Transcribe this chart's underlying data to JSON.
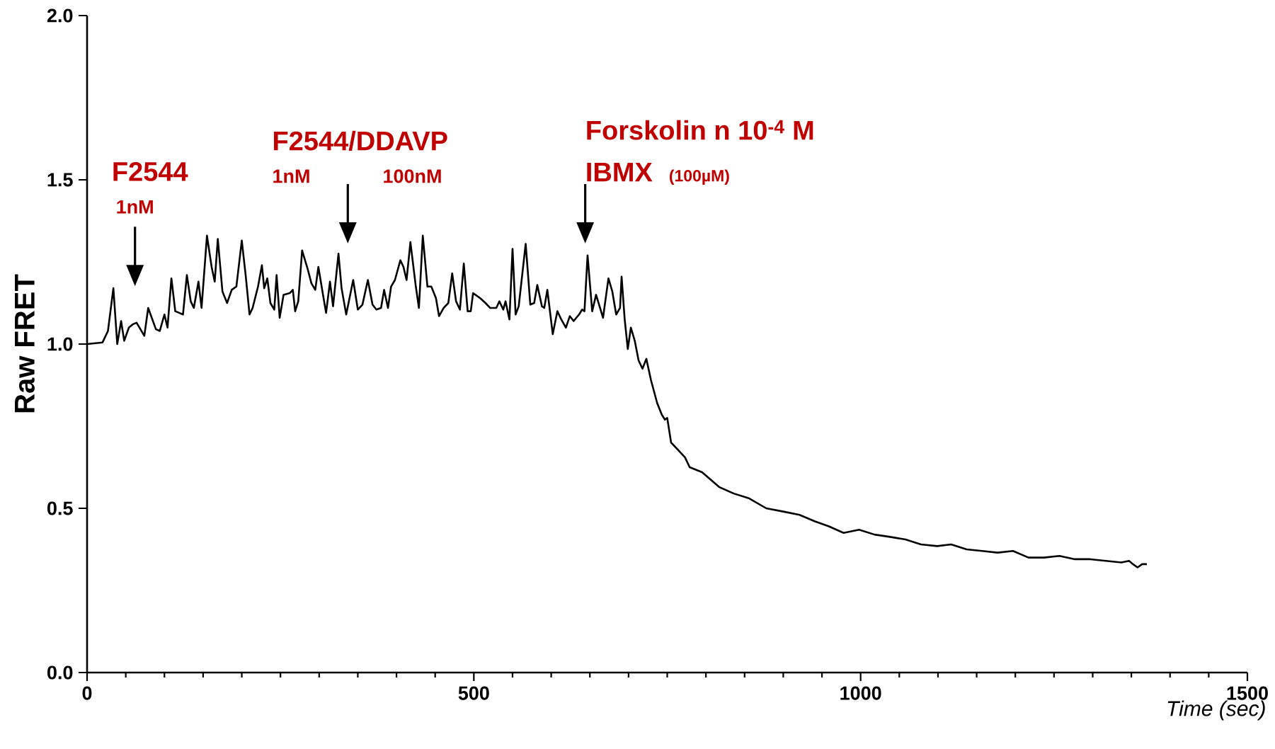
{
  "chart_data": {
    "type": "line",
    "xlabel": "Time (sec)",
    "ylabel": "Raw FRET",
    "xlim": [
      0,
      1500
    ],
    "ylim": [
      0,
      2.0
    ],
    "xticks": [
      0,
      {
        "value": 50,
        "label": null
      },
      {
        "value": 100,
        "label": null
      },
      {
        "value": 150,
        "label": null
      },
      {
        "value": 200,
        "label": null
      },
      {
        "value": 250,
        "label": null
      },
      {
        "value": 300,
        "label": null
      },
      {
        "value": 350,
        "label": null
      },
      {
        "value": 400,
        "label": null
      },
      {
        "value": 450,
        "label": null
      },
      500,
      {
        "value": 550,
        "label": null
      },
      {
        "value": 600,
        "label": null
      },
      {
        "value": 650,
        "label": null
      },
      {
        "value": 700,
        "label": null
      },
      {
        "value": 750,
        "label": null
      },
      {
        "value": 800,
        "label": null
      },
      {
        "value": 850,
        "label": null
      },
      {
        "value": 900,
        "label": null
      },
      {
        "value": 950,
        "label": null
      },
      1000,
      {
        "value": 1050,
        "label": null
      },
      {
        "value": 1100,
        "label": null
      },
      {
        "value": 1150,
        "label": null
      },
      {
        "value": 1200,
        "label": null
      },
      {
        "value": 1250,
        "label": null
      },
      {
        "value": 1300,
        "label": null
      },
      {
        "value": 1350,
        "label": null
      },
      {
        "value": 1400,
        "label": null
      },
      {
        "value": 1450,
        "label": null
      },
      1500
    ],
    "yticks": [
      {
        "value": 0,
        "label": "0.0"
      },
      {
        "value": 0.5,
        "label": "0.5"
      },
      {
        "value": 1.0,
        "label": "1.0"
      },
      {
        "value": 1.5,
        "label": "1.5"
      },
      {
        "value": 2.0,
        "label": "2.0"
      }
    ],
    "marker": "none",
    "line_style": "solid",
    "series": [
      {
        "color": "#000000",
        "x": [
          0,
          20,
          27,
          34,
          39,
          44,
          48,
          54,
          59,
          64,
          74,
          79,
          89,
          94,
          100,
          104,
          109,
          114,
          124,
          129,
          134,
          138,
          144,
          148,
          155,
          161,
          165,
          169,
          175,
          181,
          187,
          193,
          200,
          205,
          210,
          214,
          221,
          226,
          229,
          233,
          237,
          242,
          245,
          249,
          254,
          262,
          266,
          269,
          273,
          278,
          285,
          290,
          295,
          299,
          305,
          309,
          314,
          318,
          325,
          329,
          335,
          344,
          350,
          356,
          363,
          369,
          374,
          380,
          384,
          389,
          393,
          398,
          405,
          409,
          413,
          418,
          425,
          429,
          434,
          440,
          445,
          451,
          455,
          461,
          467,
          472,
          477,
          482,
          487,
          492,
          496,
          499,
          508,
          515,
          521,
          529,
          533,
          538,
          541,
          546,
          550,
          554,
          558,
          567,
          573,
          578,
          582,
          588,
          591,
          595,
          602,
          608,
          613,
          619,
          624,
          629,
          636,
          640,
          643,
          647,
          653,
          658,
          667,
          674,
          679,
          684,
          689,
          691,
          695,
          699,
          703,
          708,
          713,
          718,
          723,
          729,
          737,
          743,
          747,
          750,
          755,
          763,
          773,
          779,
          795,
          817,
          836,
          856,
          878,
          900,
          921,
          941,
          959,
          978,
          998,
          1018,
          1038,
          1058,
          1078,
          1099,
          1117,
          1137,
          1157,
          1177,
          1197,
          1217,
          1237,
          1257,
          1277,
          1297,
          1317,
          1337,
          1347,
          1352,
          1358,
          1364,
          1370
        ],
        "values": [
          1.0,
          1.005,
          1.04,
          1.17,
          1.0,
          1.07,
          1.01,
          1.05,
          1.06,
          1.065,
          1.025,
          1.11,
          1.045,
          1.04,
          1.09,
          1.05,
          1.2,
          1.1,
          1.09,
          1.21,
          1.13,
          1.11,
          1.19,
          1.11,
          1.33,
          1.235,
          1.19,
          1.32,
          1.16,
          1.125,
          1.165,
          1.175,
          1.315,
          1.21,
          1.09,
          1.11,
          1.175,
          1.24,
          1.17,
          1.2,
          1.125,
          1.105,
          1.21,
          1.08,
          1.15,
          1.155,
          1.165,
          1.1,
          1.13,
          1.285,
          1.23,
          1.185,
          1.165,
          1.235,
          1.15,
          1.095,
          1.19,
          1.115,
          1.275,
          1.17,
          1.09,
          1.195,
          1.105,
          1.12,
          1.195,
          1.12,
          1.105,
          1.11,
          1.165,
          1.11,
          1.175,
          1.195,
          1.255,
          1.235,
          1.195,
          1.31,
          1.175,
          1.11,
          1.33,
          1.175,
          1.175,
          1.14,
          1.085,
          1.11,
          1.125,
          1.215,
          1.13,
          1.105,
          1.245,
          1.1,
          1.1,
          1.155,
          1.14,
          1.125,
          1.11,
          1.11,
          1.13,
          1.105,
          1.13,
          1.075,
          1.29,
          1.09,
          1.115,
          1.305,
          1.12,
          1.125,
          1.18,
          1.115,
          1.11,
          1.165,
          1.03,
          1.1,
          1.075,
          1.05,
          1.085,
          1.07,
          1.09,
          1.105,
          1.1,
          1.27,
          1.1,
          1.15,
          1.08,
          1.2,
          1.16,
          1.09,
          1.11,
          1.205,
          1.075,
          0.985,
          1.05,
          1.01,
          0.95,
          0.925,
          0.955,
          0.89,
          0.82,
          0.785,
          0.77,
          0.775,
          0.7,
          0.68,
          0.655,
          0.625,
          0.61,
          0.565,
          0.545,
          0.53,
          0.5,
          0.49,
          0.48,
          0.46,
          0.445,
          0.425,
          0.435,
          0.42,
          0.413,
          0.405,
          0.39,
          0.385,
          0.39,
          0.375,
          0.37,
          0.365,
          0.37,
          0.35,
          0.35,
          0.355,
          0.345,
          0.345,
          0.34,
          0.335,
          0.34,
          0.33,
          0.32,
          0.33,
          0.33
        ]
      }
    ],
    "annotations": [
      "F2544",
      "1nM",
      "F2544/DDAVP",
      "1nM",
      "100nM",
      "Forskolin n 10$^{-4}$ M",
      "IBMX",
      "(100µM)"
    ]
  }
}
